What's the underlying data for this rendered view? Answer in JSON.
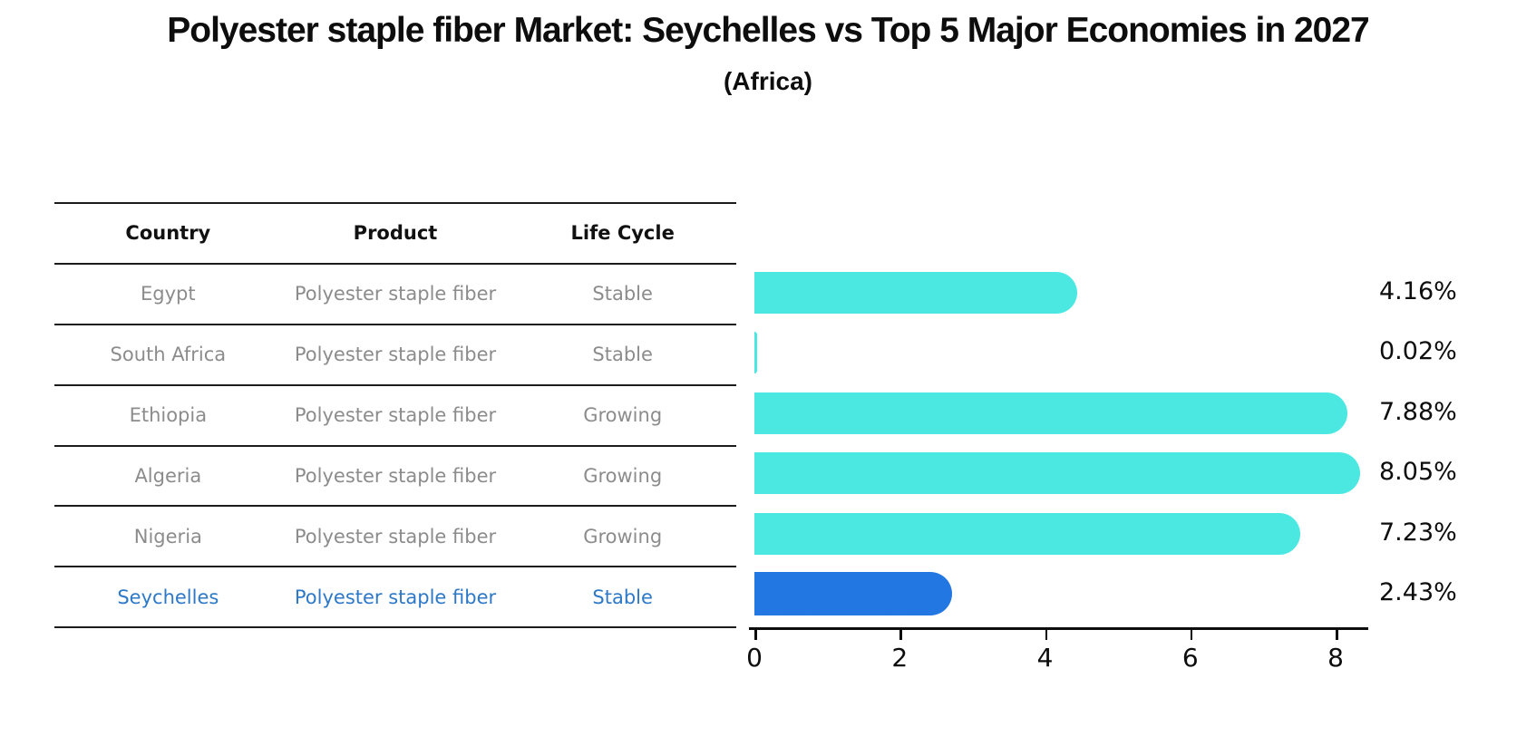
{
  "title": "Polyester staple fiber Market: Seychelles vs Top 5 Major Economies in 2027",
  "subtitle": "(Africa)",
  "table": {
    "headers": [
      "Country",
      "Product",
      "Life Cycle"
    ],
    "rows": [
      {
        "country": "Egypt",
        "product": "Polyester staple fiber",
        "life_cycle": "Stable",
        "highlight": false
      },
      {
        "country": "South Africa",
        "product": "Polyester staple fiber",
        "life_cycle": "Stable",
        "highlight": false
      },
      {
        "country": "Ethiopia",
        "product": "Polyester staple fiber",
        "life_cycle": "Growing",
        "highlight": false
      },
      {
        "country": "Algeria",
        "product": "Polyester staple fiber",
        "life_cycle": "Growing",
        "highlight": false
      },
      {
        "country": "Nigeria",
        "product": "Polyester staple fiber",
        "life_cycle": "Growing",
        "highlight": false
      },
      {
        "country": "Seychelles",
        "product": "Polyester staple fiber",
        "life_cycle": "Stable",
        "highlight": true
      }
    ]
  },
  "chart_data": {
    "type": "bar",
    "orientation": "horizontal",
    "title": "Polyester staple fiber Market: Seychelles vs Top 5 Major Economies in 2027 (Africa)",
    "categories": [
      "Egypt",
      "South Africa",
      "Ethiopia",
      "Algeria",
      "Nigeria",
      "Seychelles"
    ],
    "values": [
      4.16,
      0.02,
      7.88,
      8.05,
      7.23,
      2.43
    ],
    "value_labels": [
      "4.16%",
      "0.02%",
      "7.88%",
      "8.05%",
      "7.23%",
      "2.43%"
    ],
    "x_ticks": [
      0,
      2,
      4,
      6,
      8
    ],
    "xlim": [
      0,
      8.45
    ],
    "grid": false,
    "legend": false,
    "highlight_index": 5,
    "colors": {
      "bar": "#4be8e2",
      "highlight_bar": "#2277e3",
      "highlight_text": "#2d79c7",
      "text": "#0d0d0d",
      "muted_text": "#8c8c8c"
    }
  }
}
